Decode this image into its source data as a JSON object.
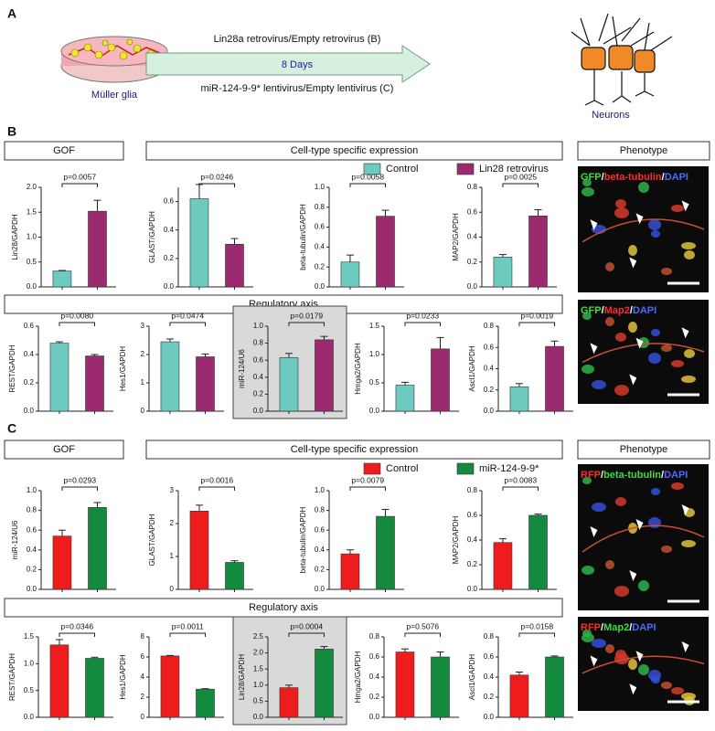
{
  "figure": {
    "panel_a": {
      "label": "A",
      "source": "Müller glia",
      "top_text": "Lin28a retrovirus/Empty retrovirus (B)",
      "duration": "8 Days",
      "bottom_text": "miR-124-9-9* lentivirus/Empty lentivirus (C)",
      "target": "Neurons"
    }
  },
  "chart_data": [
    {
      "type": "bar",
      "label": "B",
      "headers": [
        "GOF",
        "Cell-type specific expression",
        "Phenotype"
      ],
      "section": "Regulatory axis",
      "legend": [
        {
          "name": "Control",
          "color": "#6ccbbe"
        },
        {
          "name": "Lin28 retrovirus",
          "color": "#9c2a6f"
        }
      ],
      "images": [
        {
          "caption": [
            {
              "text": "GFP",
              "color": "#3ddc3d"
            },
            {
              "text": "/",
              "color": "#ffffff"
            },
            {
              "text": "beta-tubulin",
              "color": "#ff2b2b"
            },
            {
              "text": "/",
              "color": "#ffffff"
            },
            {
              "text": "DAPI",
              "color": "#4a6bff"
            }
          ]
        },
        {
          "caption": [
            {
              "text": "GFP",
              "color": "#3ddc3d"
            },
            {
              "text": "/",
              "color": "#ffffff"
            },
            {
              "text": "Map2",
              "color": "#ff2b2b"
            },
            {
              "text": "/",
              "color": "#ffffff"
            },
            {
              "text": "DAPI",
              "color": "#4a6bff"
            }
          ]
        }
      ],
      "charts": [
        {
          "ylabel": "Lin28/GAPDH",
          "values": [
            0.32,
            1.52
          ],
          "errors": [
            0.01,
            0.22
          ],
          "annotation": "p=0.0057",
          "ylim": [
            0,
            2
          ],
          "yticks": [
            {
              "value": 0,
              "label": "0.0"
            },
            0.5,
            {
              "value": 1,
              "label": "1.0"
            },
            1.5,
            {
              "value": 2,
              "label": "2.0"
            }
          ]
        },
        {
          "ylabel": "GLAST/GAPDH",
          "values": [
            0.62,
            0.3
          ],
          "errors": [
            0.1,
            0.04
          ],
          "annotation": "p=0.0246",
          "ylim": [
            0,
            0.7
          ],
          "yticks": [
            {
              "value": 0,
              "label": "0.0"
            },
            0.2,
            0.4,
            0.6
          ]
        },
        {
          "ylabel": "beta-tubulin/GAPDH",
          "values": [
            0.25,
            0.71
          ],
          "errors": [
            0.07,
            0.06
          ],
          "annotation": "p=0.0058",
          "ylim": [
            0,
            1
          ],
          "yticks": [
            {
              "value": 0,
              "label": "0.0"
            },
            0.2,
            0.4,
            0.6,
            0.8,
            {
              "value": 1,
              "label": "1.0"
            }
          ]
        },
        {
          "ylabel": "MAP2/GAPDH",
          "values": [
            0.24,
            0.57
          ],
          "errors": [
            0.02,
            0.05
          ],
          "annotation": "p=0.0025",
          "ylim": [
            0,
            0.8
          ],
          "yticks": [
            {
              "value": 0,
              "label": "0.0"
            },
            0.2,
            0.4,
            0.6,
            0.8
          ]
        },
        {
          "ylabel": "REST/GAPDH",
          "values": [
            0.48,
            0.39
          ],
          "errors": [
            0.01,
            0.01
          ],
          "annotation": "p=0.0080",
          "ylim": [
            0,
            0.6
          ],
          "yticks": [
            {
              "value": 0,
              "label": "0.0"
            },
            0.2,
            0.4,
            0.6
          ]
        },
        {
          "ylabel": "Hes1/GAPDH",
          "values": [
            2.45,
            1.92
          ],
          "errors": [
            0.1,
            0.1
          ],
          "annotation": "p=0.0474",
          "ylim": [
            0,
            3
          ],
          "yticks": [
            0,
            1,
            2,
            3
          ]
        },
        {
          "ylabel": "miR-124/U6",
          "values": [
            0.63,
            0.84
          ],
          "errors": [
            0.05,
            0.04
          ],
          "annotation": "p=0.0179",
          "ylim": [
            0,
            1
          ],
          "yticks": [
            {
              "value": 0,
              "label": "0.0"
            },
            0.2,
            0.4,
            0.6,
            0.8,
            {
              "value": 1,
              "label": "1.0"
            }
          ],
          "highlight": true
        },
        {
          "ylabel": "Hmga2/GAPDH",
          "values": [
            0.46,
            1.1
          ],
          "errors": [
            0.05,
            0.2
          ],
          "annotation": "p=0.0233",
          "ylim": [
            0,
            1.5
          ],
          "yticks": [
            {
              "value": 0,
              "label": "0.0"
            },
            0.5,
            {
              "value": 1,
              "label": "1.0"
            },
            1.5
          ]
        },
        {
          "ylabel": "Ascl1/GAPDH",
          "values": [
            0.23,
            0.61
          ],
          "errors": [
            0.03,
            0.05
          ],
          "annotation": "p=0.0019",
          "ylim": [
            0,
            0.8
          ],
          "yticks": [
            {
              "value": 0,
              "label": "0.0"
            },
            0.2,
            0.4,
            0.6,
            0.8
          ]
        }
      ]
    },
    {
      "type": "bar",
      "label": "C",
      "headers": [
        "GOF",
        "Cell-type specific expression",
        "Phenotype"
      ],
      "section": "Regulatory axis",
      "legend": [
        {
          "name": "Control",
          "color": "#ee1c1c"
        },
        {
          "name": "miR-124-9-9*",
          "color": "#138a3e"
        }
      ],
      "images": [
        {
          "caption": [
            {
              "text": "RFP",
              "color": "#ff2b2b"
            },
            {
              "text": "/",
              "color": "#ffffff"
            },
            {
              "text": "beta-tubulin",
              "color": "#3ddc3d"
            },
            {
              "text": "/",
              "color": "#ffffff"
            },
            {
              "text": "DAPI",
              "color": "#4a6bff"
            }
          ]
        },
        {
          "caption": [
            {
              "text": "RFP",
              "color": "#ff2b2b"
            },
            {
              "text": "/",
              "color": "#ffffff"
            },
            {
              "text": "Map2",
              "color": "#3ddc3d"
            },
            {
              "text": "/",
              "color": "#ffffff"
            },
            {
              "text": "DAPI",
              "color": "#4a6bff"
            }
          ]
        }
      ],
      "charts": [
        {
          "ylabel": "miR-124/U6",
          "values": [
            0.54,
            0.83
          ],
          "errors": [
            0.06,
            0.05
          ],
          "annotation": "p=0.0293",
          "ylim": [
            0,
            1
          ],
          "yticks": [
            {
              "value": 0,
              "label": "0.0"
            },
            0.2,
            0.4,
            0.6,
            0.8,
            {
              "value": 1,
              "label": "1.0"
            }
          ]
        },
        {
          "ylabel": "GLAST/GAPDH",
          "values": [
            2.38,
            0.82
          ],
          "errors": [
            0.18,
            0.05
          ],
          "annotation": "p=0.0016",
          "ylim": [
            0,
            3
          ],
          "yticks": [
            0,
            1,
            2,
            3
          ]
        },
        {
          "ylabel": "beta-tubulin/GAPDH",
          "values": [
            0.36,
            0.74
          ],
          "errors": [
            0.04,
            0.07
          ],
          "annotation": "p=0.0079",
          "ylim": [
            0,
            1
          ],
          "yticks": [
            {
              "value": 0,
              "label": "0.0"
            },
            0.2,
            0.4,
            0.6,
            0.8,
            {
              "value": 1,
              "label": "1.0"
            }
          ]
        },
        {
          "ylabel": "MAP2/GAPDH",
          "values": [
            0.38,
            0.6
          ],
          "errors": [
            0.03,
            0.01
          ],
          "annotation": "p=0.0083",
          "ylim": [
            0,
            0.8
          ],
          "yticks": [
            {
              "value": 0,
              "label": "0.0"
            },
            0.2,
            0.4,
            0.6,
            0.8
          ]
        },
        {
          "ylabel": "REST/GAPDH",
          "values": [
            1.35,
            1.1
          ],
          "errors": [
            0.1,
            0.02
          ],
          "annotation": "p=0.0346",
          "ylim": [
            0,
            1.5
          ],
          "yticks": [
            {
              "value": 0,
              "label": "0.0"
            },
            0.5,
            {
              "value": 1,
              "label": "1.0"
            },
            1.5
          ]
        },
        {
          "ylabel": "Hes1/GAPDH",
          "values": [
            6.1,
            2.8
          ],
          "errors": [
            0.05,
            0.05
          ],
          "annotation": "p=0.0011",
          "ylim": [
            0,
            8
          ],
          "yticks": [
            0,
            2,
            4,
            6,
            8
          ]
        },
        {
          "ylabel": "Lin28/GAPDH",
          "values": [
            0.92,
            2.12
          ],
          "errors": [
            0.08,
            0.08
          ],
          "annotation": "p=0.0004",
          "ylim": [
            0,
            2.5
          ],
          "yticks": [
            {
              "value": 0,
              "label": "0.0"
            },
            0.5,
            {
              "value": 1,
              "label": "1.0"
            },
            1.5,
            {
              "value": 2,
              "label": "2.0"
            },
            2.5
          ],
          "highlight": true
        },
        {
          "ylabel": "Hmga2/GAPDH",
          "values": [
            0.65,
            0.6
          ],
          "errors": [
            0.03,
            0.05
          ],
          "annotation": "p=0.5076",
          "ylim": [
            0,
            0.8
          ],
          "yticks": [
            {
              "value": 0,
              "label": "0.0"
            },
            0.2,
            0.4,
            0.6,
            0.8
          ]
        },
        {
          "ylabel": "Ascl1/GAPDH",
          "values": [
            0.42,
            0.6
          ],
          "errors": [
            0.03,
            0.01
          ],
          "annotation": "p=0.0158",
          "ylim": [
            0,
            0.8
          ],
          "yticks": [
            {
              "value": 0,
              "label": "0.0"
            },
            0.2,
            0.4,
            0.6,
            0.8
          ]
        }
      ]
    }
  ]
}
